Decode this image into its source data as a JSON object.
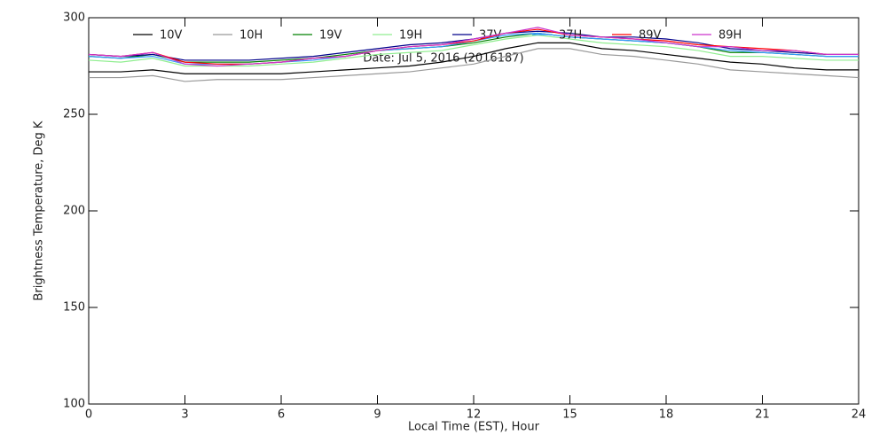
{
  "chart_data": {
    "type": "line",
    "annotation": "Date: Jul  5, 2016 (2016187)",
    "xlabel": "Local Time (EST), Hour",
    "ylabel": "Brightness Temperature, Deg K",
    "x": [
      0,
      1,
      2,
      3,
      4,
      5,
      6,
      7,
      8,
      9,
      10,
      11,
      12,
      13,
      14,
      15,
      16,
      17,
      18,
      19,
      20,
      21,
      22,
      23,
      24
    ],
    "series": [
      {
        "name": "10V",
        "color": "#000000",
        "values": [
          272,
          272,
          273,
          271,
          271,
          271,
          271,
          272,
          273,
          274,
          275,
          277,
          280,
          284,
          287,
          287,
          284,
          283,
          281,
          279,
          277,
          276,
          274,
          273,
          273
        ]
      },
      {
        "name": "10H",
        "color": "#999999",
        "values": [
          269,
          269,
          270,
          267,
          268,
          268,
          268,
          269,
          270,
          271,
          272,
          274,
          276,
          280,
          284,
          284,
          281,
          280,
          278,
          276,
          273,
          272,
          271,
          270,
          269
        ]
      },
      {
        "name": "19V",
        "color": "#008000",
        "values": [
          280,
          279,
          281,
          277,
          277,
          277,
          278,
          279,
          281,
          283,
          284,
          285,
          287,
          290,
          292,
          290,
          289,
          288,
          287,
          285,
          282,
          282,
          281,
          280,
          280
        ]
      },
      {
        "name": "19H",
        "color": "#90ee90",
        "values": [
          278,
          277,
          279,
          275,
          275,
          275,
          276,
          277,
          279,
          281,
          282,
          283,
          286,
          289,
          291,
          289,
          287,
          286,
          285,
          283,
          280,
          280,
          279,
          278,
          278
        ]
      },
      {
        "name": "37V",
        "color": "#00008b",
        "values": [
          281,
          280,
          281,
          278,
          278,
          278,
          279,
          280,
          282,
          284,
          286,
          287,
          289,
          292,
          293,
          292,
          290,
          290,
          289,
          287,
          284,
          283,
          282,
          281,
          281
        ]
      },
      {
        "name": "37H",
        "color": "#3399ff",
        "values": [
          280,
          279,
          280,
          276,
          276,
          276,
          277,
          278,
          280,
          283,
          284,
          285,
          288,
          291,
          292,
          290,
          289,
          288,
          287,
          285,
          283,
          282,
          281,
          280,
          280
        ]
      },
      {
        "name": "89V",
        "color": "#ff0000",
        "values": [
          281,
          280,
          282,
          277,
          276,
          276,
          277,
          279,
          280,
          283,
          285,
          286,
          288,
          292,
          294,
          291,
          290,
          289,
          288,
          286,
          285,
          284,
          283,
          281,
          281
        ]
      },
      {
        "name": "89H",
        "color": "#cc33cc",
        "values": [
          281,
          280,
          282,
          276,
          275,
          276,
          277,
          279,
          280,
          283,
          285,
          286,
          289,
          292,
          295,
          291,
          290,
          289,
          287,
          285,
          285,
          283,
          283,
          281,
          281
        ]
      }
    ],
    "xlim": [
      0,
      24
    ],
    "xticks": [
      0,
      3,
      6,
      9,
      12,
      15,
      18,
      21,
      24
    ],
    "ylim": [
      100,
      300
    ],
    "yticks": [
      100,
      150,
      200,
      250,
      300
    ]
  }
}
